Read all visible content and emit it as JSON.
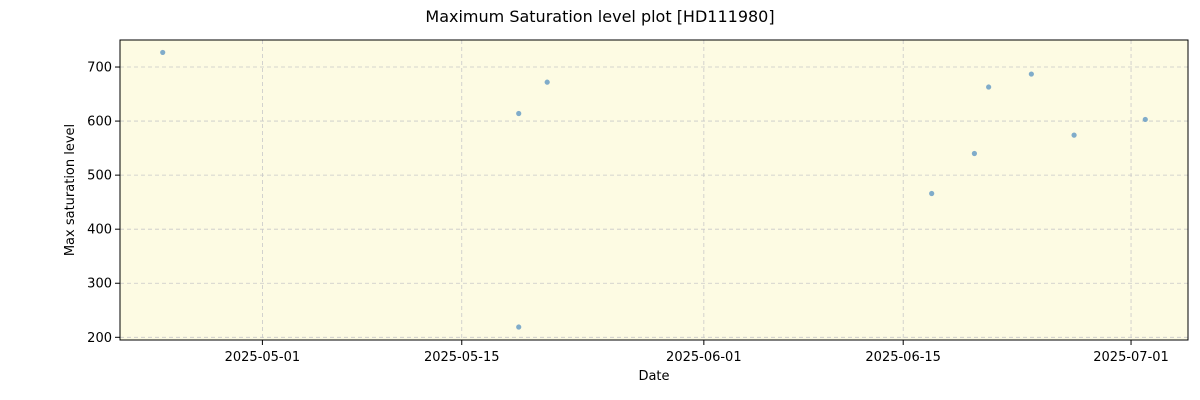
{
  "chart_data": {
    "type": "scatter",
    "title": "Maximum Saturation level plot [HD111980]",
    "xlabel": "Date",
    "ylabel": "Max saturation level",
    "xlim": [
      "2025-04-21",
      "2025-07-05"
    ],
    "ylim": [
      195,
      750
    ],
    "x_ticks": [
      "2025-05-01",
      "2025-05-15",
      "2025-06-01",
      "2025-06-15",
      "2025-07-01"
    ],
    "y_ticks": [
      200,
      300,
      400,
      500,
      600,
      700
    ],
    "grid": true,
    "plot_background": "#fdfbe3",
    "marker_color": "#6a9ec5",
    "points": [
      {
        "x": "2025-04-24",
        "y": 727
      },
      {
        "x": "2025-05-19",
        "y": 614
      },
      {
        "x": "2025-05-19",
        "y": 219
      },
      {
        "x": "2025-05-21",
        "y": 672
      },
      {
        "x": "2025-06-17",
        "y": 466
      },
      {
        "x": "2025-06-20",
        "y": 540
      },
      {
        "x": "2025-06-21",
        "y": 663
      },
      {
        "x": "2025-06-24",
        "y": 687
      },
      {
        "x": "2025-06-27",
        "y": 574
      },
      {
        "x": "2025-07-02",
        "y": 603
      }
    ]
  }
}
